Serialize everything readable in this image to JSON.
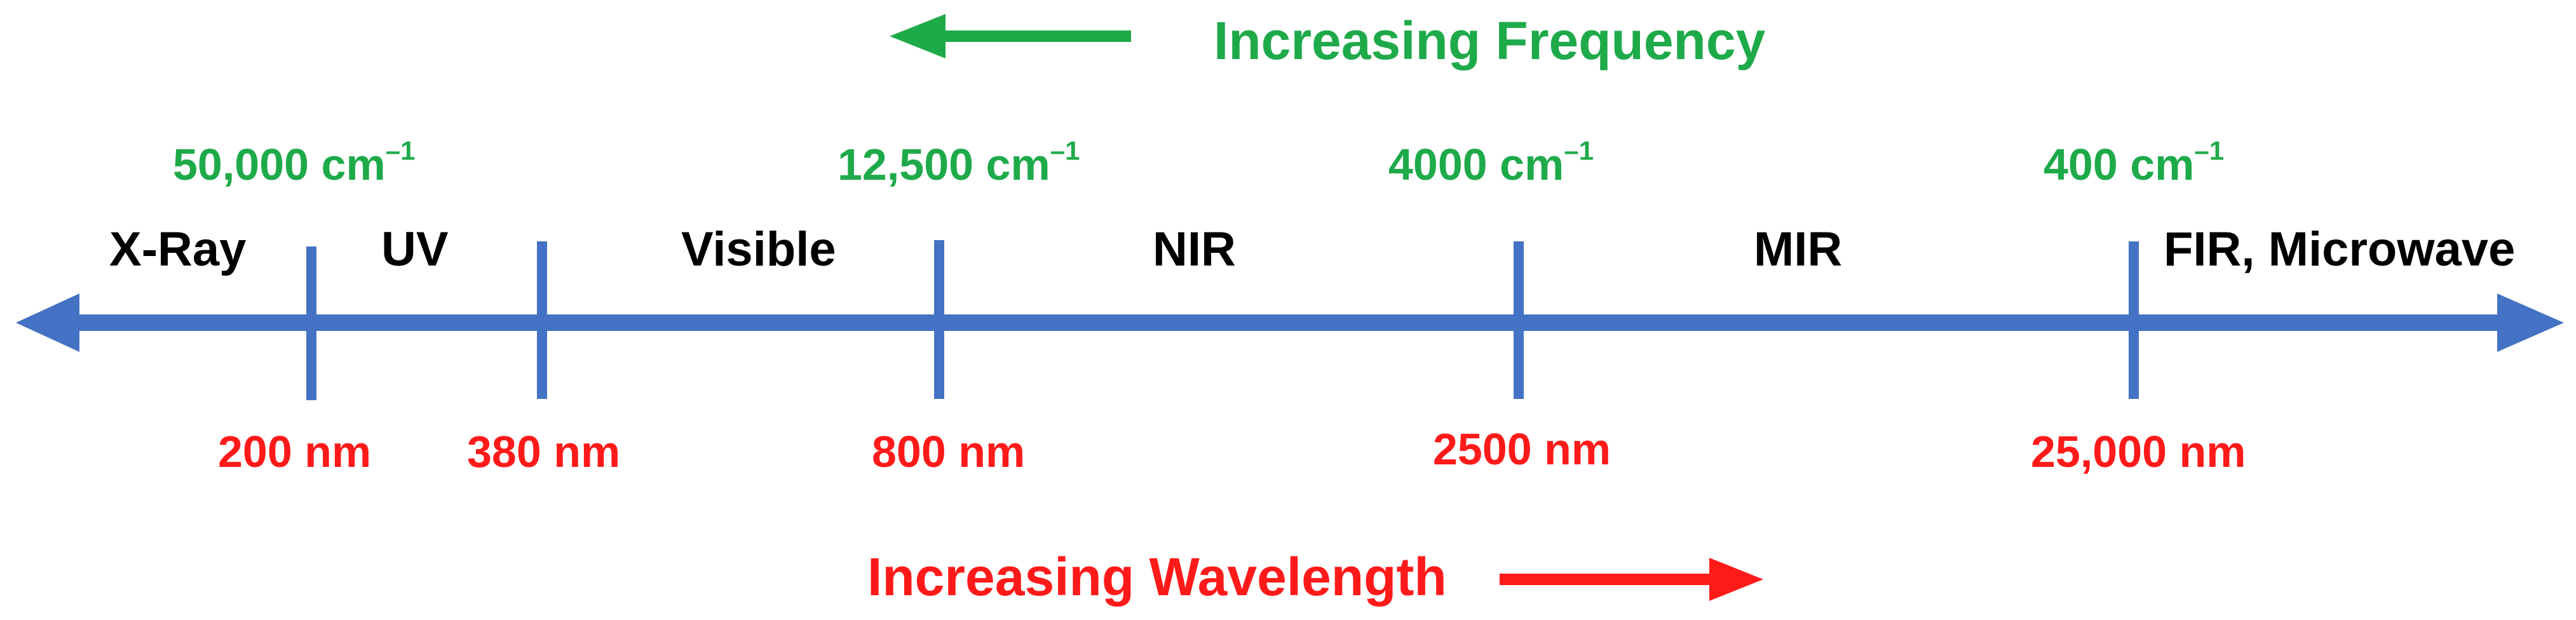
{
  "titles": {
    "frequency": "Increasing Frequency",
    "wavelength": "Increasing Wavelength"
  },
  "colors": {
    "axis": "#4472c4",
    "frequency": "#1faa4a",
    "wavelength": "#ff1a1a",
    "regions": "#000000"
  },
  "wavenumbers": [
    {
      "value": "50,000 cm",
      "exp": "–1"
    },
    {
      "value": "12,500 cm",
      "exp": "–1"
    },
    {
      "value": "4000 cm",
      "exp": "–1"
    },
    {
      "value": "400 cm",
      "exp": "–1"
    }
  ],
  "wavelengths": [
    "200 nm",
    "380 nm",
    "800 nm",
    "2500 nm",
    "25,000 nm"
  ],
  "regions": [
    "X-Ray",
    "UV",
    "Visible",
    "NIR",
    "MIR",
    "FIR, Microwave"
  ]
}
